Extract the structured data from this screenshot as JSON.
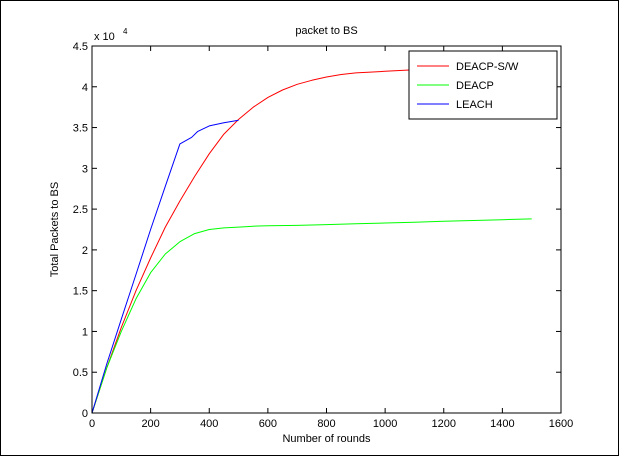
{
  "chart_data": {
    "type": "line",
    "title": "packet to BS",
    "xlabel": "Number of rounds",
    "ylabel": "Total Packets to BS",
    "y_multiplier_label": "x 10",
    "y_multiplier_exp": "4",
    "xlim": [
      0,
      1600
    ],
    "ylim": [
      0,
      4.5
    ],
    "x_ticks": [
      0,
      200,
      400,
      600,
      800,
      1000,
      1200,
      1400,
      1600
    ],
    "y_ticks": [
      0,
      0.5,
      1,
      1.5,
      2,
      2.5,
      3,
      3.5,
      4,
      4.5
    ],
    "x_tick_labels": [
      "0",
      "200",
      "400",
      "600",
      "800",
      "1000",
      "1200",
      "1400",
      "1600"
    ],
    "y_tick_labels": [
      "0",
      "0.5",
      "1",
      "1.5",
      "2",
      "2.5",
      "3",
      "3.5",
      "4",
      "4.5"
    ],
    "grid": false,
    "legend_position": "top-right",
    "series": [
      {
        "name": "DEACP-S/W",
        "color": "#ff0000",
        "x": [
          0,
          50,
          100,
          150,
          200,
          250,
          300,
          350,
          400,
          450,
          500,
          550,
          600,
          650,
          700,
          750,
          800,
          850,
          900,
          950,
          1000,
          1100,
          1200,
          1300,
          1400,
          1500
        ],
        "y": [
          0,
          0.55,
          1.05,
          1.5,
          1.9,
          2.28,
          2.6,
          2.9,
          3.18,
          3.42,
          3.6,
          3.75,
          3.87,
          3.96,
          4.03,
          4.08,
          4.12,
          4.15,
          4.17,
          4.18,
          4.19,
          4.21,
          4.22,
          4.23,
          4.24,
          4.25
        ]
      },
      {
        "name": "DEACP",
        "color": "#00ff00",
        "x": [
          0,
          50,
          100,
          150,
          200,
          250,
          300,
          350,
          400,
          450,
          500,
          550,
          600,
          700,
          800,
          900,
          1000,
          1100,
          1200,
          1300,
          1400,
          1500
        ],
        "y": [
          0,
          0.55,
          1.0,
          1.4,
          1.72,
          1.95,
          2.1,
          2.2,
          2.25,
          2.27,
          2.28,
          2.29,
          2.295,
          2.3,
          2.31,
          2.32,
          2.33,
          2.34,
          2.35,
          2.36,
          2.37,
          2.38
        ]
      },
      {
        "name": "LEACH",
        "color": "#0000ff",
        "x": [
          0,
          50,
          100,
          150,
          200,
          250,
          300,
          340,
          360,
          400,
          450,
          500
        ],
        "y": [
          0,
          0.6,
          1.15,
          1.7,
          2.25,
          2.78,
          3.3,
          3.38,
          3.45,
          3.52,
          3.56,
          3.59
        ]
      }
    ]
  }
}
